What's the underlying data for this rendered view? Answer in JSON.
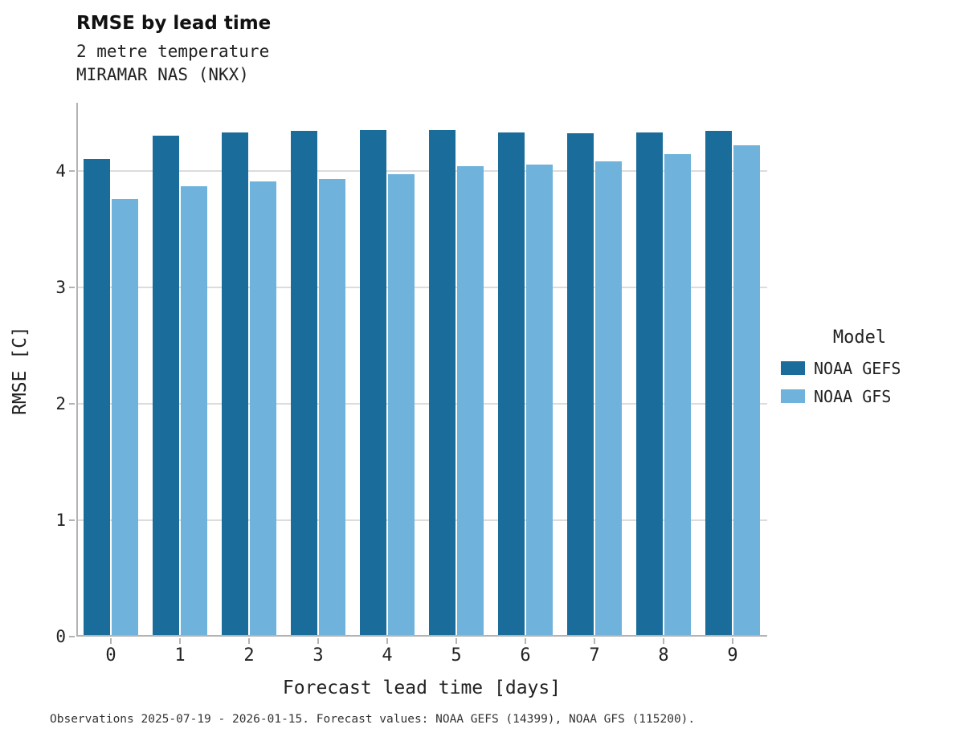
{
  "header": {
    "title": "RMSE by lead time",
    "subtitle_line1": "2 metre temperature",
    "subtitle_line2": "MIRAMAR NAS (NKX)"
  },
  "legend": {
    "title": "Model",
    "items": [
      {
        "label": "NOAA GEFS",
        "color": "#1A6D9A"
      },
      {
        "label": "NOAA GFS",
        "color": "#6FB2DB"
      }
    ]
  },
  "footer": {
    "caption": "Observations 2025-07-19 - 2026-01-15. Forecast values: NOAA GEFS (14399), NOAA GFS (115200)."
  },
  "colors": {
    "grid": "#dcdcdc",
    "axis": "#b3b3b3",
    "background": "#ffffff"
  },
  "chart_data": {
    "type": "bar",
    "title": "RMSE by lead time",
    "subtitle": [
      "2 metre temperature",
      "MIRAMAR NAS (NKX)"
    ],
    "xlabel": "Forecast lead time [days]",
    "ylabel": "RMSE [C]",
    "categories": [
      "0",
      "1",
      "2",
      "3",
      "4",
      "5",
      "6",
      "7",
      "8",
      "9"
    ],
    "series": [
      {
        "name": "NOAA GEFS",
        "color": "#1A6D9A",
        "values": [
          4.1,
          4.3,
          4.33,
          4.34,
          4.35,
          4.35,
          4.33,
          4.32,
          4.33,
          4.34
        ]
      },
      {
        "name": "NOAA GFS",
        "color": "#6FB2DB",
        "values": [
          3.76,
          3.87,
          3.91,
          3.93,
          3.97,
          4.04,
          4.05,
          4.08,
          4.14,
          4.22
        ]
      }
    ],
    "ylim": [
      0,
      4.57
    ],
    "yticks": [
      0,
      1,
      2,
      3,
      4
    ],
    "grid": "horizontal",
    "legend_position": "right"
  }
}
